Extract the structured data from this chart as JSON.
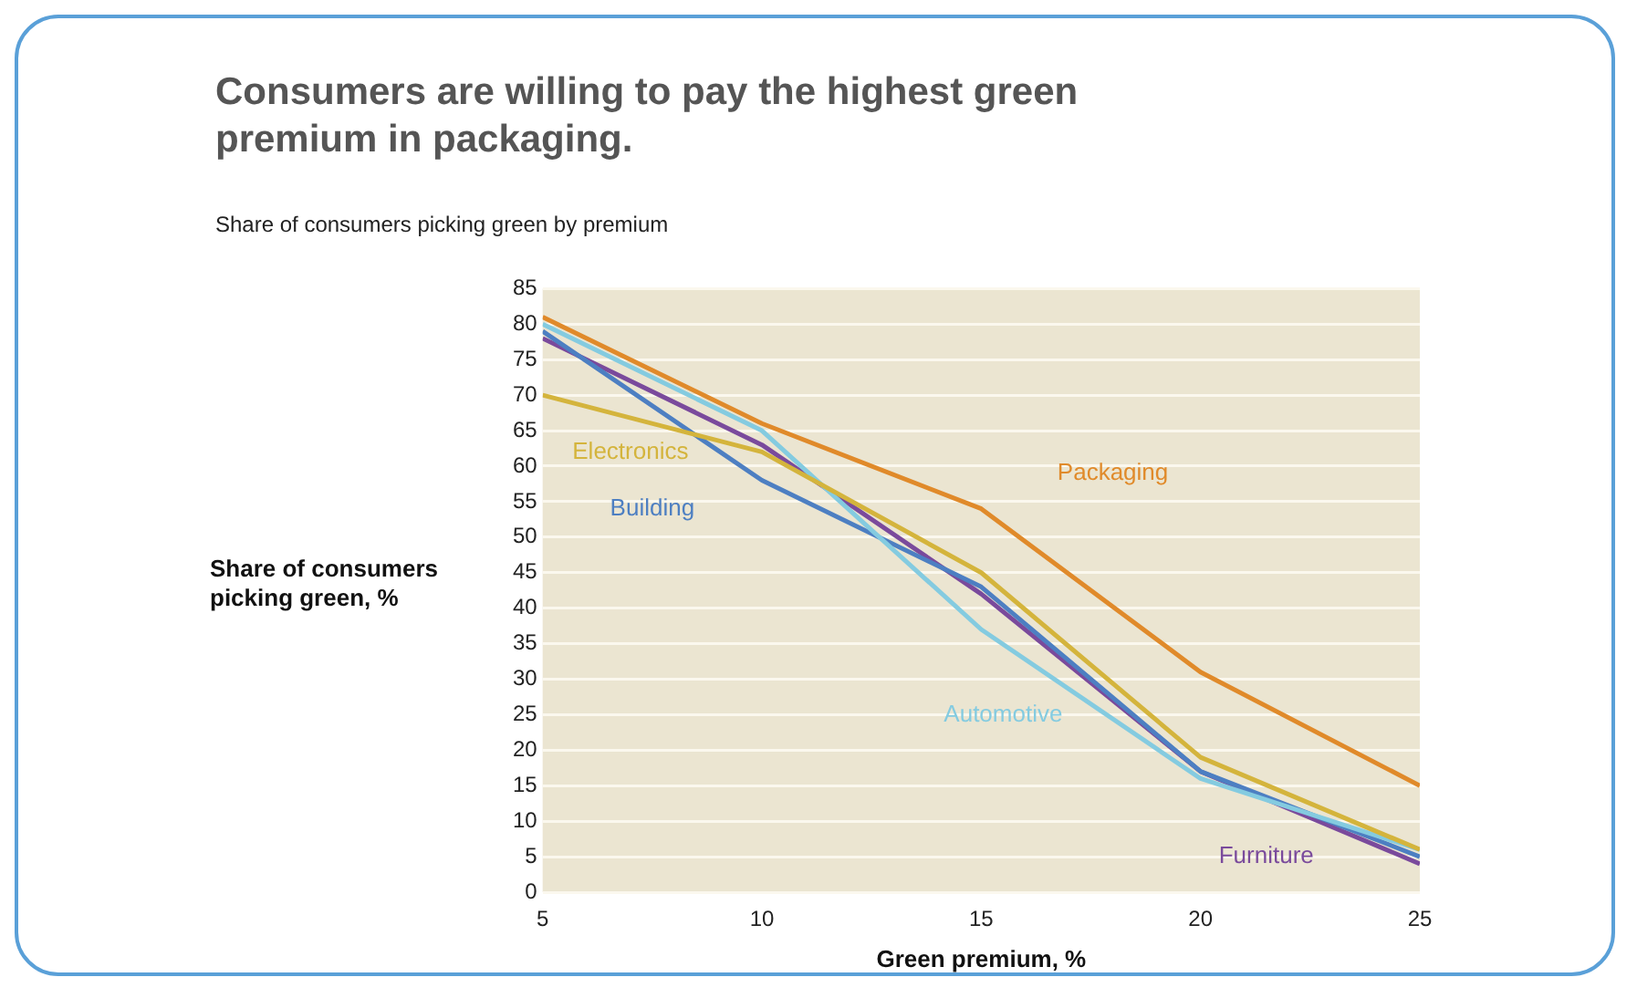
{
  "chart_data": {
    "type": "line",
    "title": "Consumers are willing to pay the highest green premium in packaging.",
    "subtitle": "Share of consumers picking green by premium",
    "xlabel": "Green premium, %",
    "ylabel": "Share of consumers picking green, %",
    "x": [
      5,
      10,
      15,
      20,
      25
    ],
    "series": [
      {
        "name": "Packaging",
        "color": "#e08a2a",
        "values": [
          81,
          66,
          54,
          31,
          15
        ]
      },
      {
        "name": "Electronics",
        "color": "#d4b43c",
        "values": [
          70,
          62,
          45,
          19,
          6
        ]
      },
      {
        "name": "Automotive",
        "color": "#84cbe0",
        "values": [
          80,
          65,
          37,
          16,
          6
        ]
      },
      {
        "name": "Building",
        "color": "#4d7fc2",
        "values": [
          79,
          58,
          43,
          17,
          5
        ]
      },
      {
        "name": "Furniture",
        "color": "#7a4a9c",
        "values": [
          78,
          63,
          42,
          17,
          4
        ]
      }
    ],
    "xlim": [
      5,
      25
    ],
    "xticks": [
      5,
      10,
      15,
      20,
      25
    ],
    "ylim": [
      0,
      85
    ],
    "yticks": [
      0,
      5,
      10,
      15,
      20,
      25,
      30,
      35,
      40,
      45,
      50,
      55,
      60,
      65,
      70,
      75,
      80,
      85
    ],
    "grid": "y",
    "legend": false,
    "marker": "none",
    "line_style": "solid"
  }
}
